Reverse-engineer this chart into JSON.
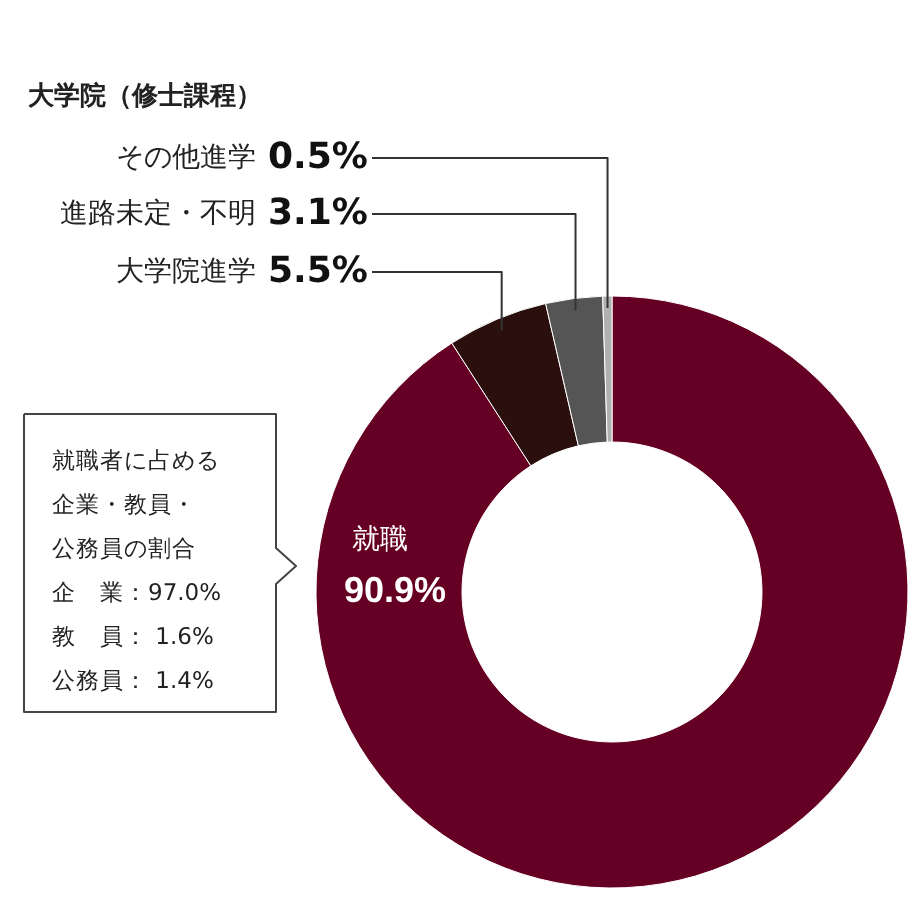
{
  "chart_data": {
    "type": "donut",
    "title": "大学院（修士課程）",
    "categories": [
      "就職",
      "大学院進学",
      "進路未定・不明",
      "その他進学"
    ],
    "values": [
      90.9,
      5.5,
      3.1,
      0.5
    ],
    "value_labels": [
      "90.9%",
      "5.5%",
      "3.1%",
      "0.5%"
    ],
    "colors": [
      "#650024",
      "#2a0f0c",
      "#555555",
      "#b0b0b0"
    ],
    "annotations": [
      "就職者に占める",
      "企業・教員・",
      "公務員の割合",
      "企　業：97.0%",
      "教　員：  1.6%",
      "公務員：  1.4%"
    ]
  }
}
